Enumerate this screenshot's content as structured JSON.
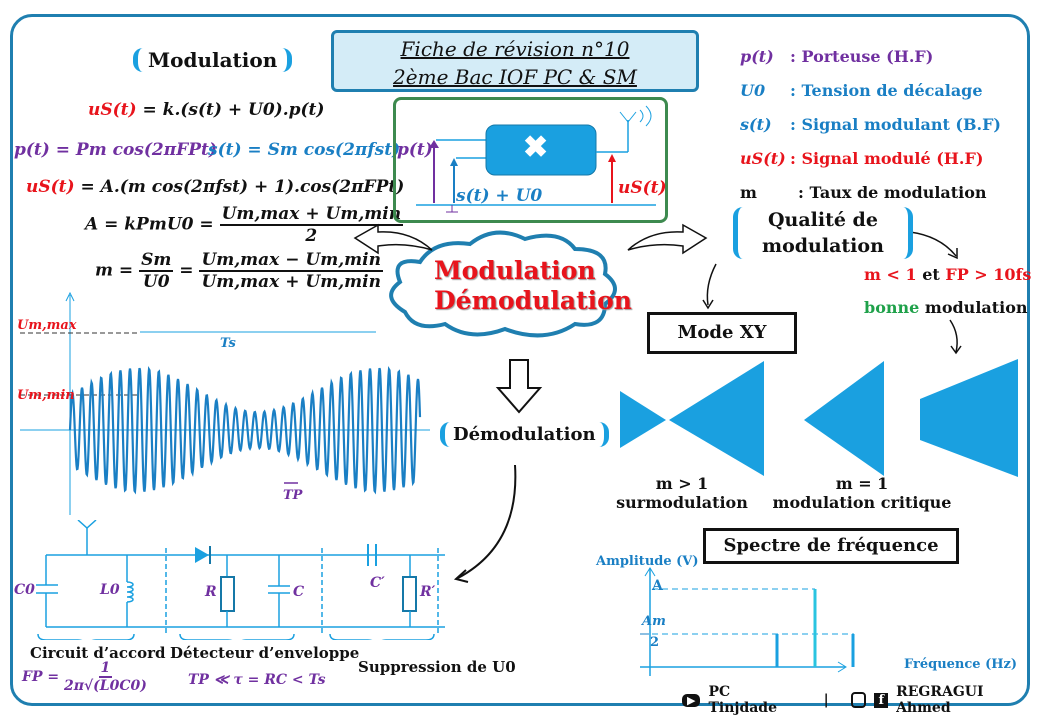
{
  "header": {
    "title_line1": "Fiche de révision n°10",
    "title_line2": "2ème Bac IOF  PC & SM"
  },
  "modulation": {
    "title": "Modulation",
    "eq1": {
      "lhs": "uS(t)",
      "rhs": "= k.(s(t) + U0).p(t)"
    },
    "eq2a": "p(t) = Pm cos(2πFPt)",
    "eq2b": "s(t) = Sm cos(2πfst)",
    "eq3": {
      "lhs": "uS(t)",
      "rhs": "= A.(m cos(2πfst) + 1).cos(2πFPt)"
    },
    "eq4": {
      "lhs": "A = kPmU0 =",
      "num": "Um,max + Um,min",
      "den": "2"
    },
    "eq5": {
      "lhs": "m =",
      "num1": "Sm",
      "den1": "U0",
      "num2": "Um,max − Um,min",
      "den2": "Um,max + Um,min"
    }
  },
  "multiplier": {
    "p_label": "p(t)",
    "s_label": "s(t) + U0",
    "u_label": "uS(t)",
    "symbol": "✖"
  },
  "legend": [
    {
      "symbol": "p(t)",
      "text": ": Porteuse (H.F)",
      "color": "#7030a0"
    },
    {
      "symbol": "U0",
      "text": ": Tension de décalage",
      "color": "#1a7fc4"
    },
    {
      "symbol": "s(t)",
      "text": ": Signal modulant (B.F)",
      "color": "#1a7fc4"
    },
    {
      "symbol": "uS(t)",
      "text": ": Signal modulé (H.F)",
      "color": "#e8141c"
    },
    {
      "symbol": "m",
      "text": ": Taux de modulation",
      "color": "#111111"
    }
  ],
  "cloud": {
    "line1": "Modulation",
    "line2": "Démodulation"
  },
  "quality": {
    "title_line1": "Qualité de",
    "title_line2": "modulation",
    "condition": {
      "m": "m < 1",
      "et": "et",
      "fp": "FP > 10fs"
    },
    "good_word": "bonne",
    "good_rest": "modulation",
    "mode_xy": "Mode XY",
    "cases": [
      {
        "m": "m > 1",
        "label": "surmodulation"
      },
      {
        "m": "m = 1",
        "label": "modulation critique"
      }
    ]
  },
  "waveform": {
    "umax": "Um,max",
    "umin": "Um,min",
    "ts": "Ts",
    "tp": "TP"
  },
  "demodulation": {
    "title": "Démodulation"
  },
  "circuit": {
    "C0": "C0",
    "L0": "L0",
    "R": "R",
    "C": "C",
    "Cp": "C′",
    "Rp": "R′",
    "sections": [
      "Circuit d’accord",
      "Détecteur d’enveloppe",
      "Suppression de U0"
    ],
    "fp_formula": {
      "lhs": "FP =",
      "num": "1",
      "den": "2π√(L0C0)"
    },
    "tau_formula": "TP ≪ τ = RC < Ts"
  },
  "spectrum": {
    "title": "Spectre de fréquence",
    "ylabel": "Amplitude (V)",
    "xlabel": "Fréquence (Hz)",
    "tick_A": "A",
    "tick_am_num": "Am",
    "tick_am_den": "2"
  },
  "footer": {
    "youtube": "PC Tinjdade",
    "sep": "|",
    "author": "REGRAGUI Ahmed"
  },
  "colors": {
    "frame": "#1f7fb0",
    "accent": "#1aa0e0",
    "red": "#e8141c",
    "purple": "#7030a0",
    "blue": "#1a7fc4",
    "green": "#1fa14a"
  }
}
